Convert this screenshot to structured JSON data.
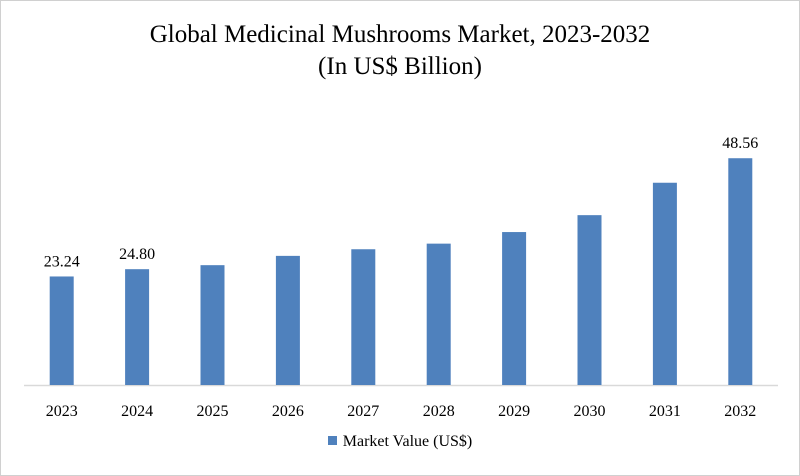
{
  "chart_data": {
    "type": "bar",
    "title": "Global Medicinal Mushrooms Market, 2023-2032",
    "subtitle": "(In US$ Billion)",
    "categories": [
      "2023",
      "2024",
      "2025",
      "2026",
      "2027",
      "2028",
      "2029",
      "2030",
      "2031",
      "2032"
    ],
    "series": [
      {
        "name": "Market Value (US$)",
        "values": [
          23.24,
          24.8,
          25.66,
          27.65,
          29.07,
          30.27,
          32.75,
          36.37,
          43.31,
          48.56
        ]
      }
    ],
    "data_labels": {
      "0": "23.24",
      "1": "24.80",
      "9": "48.56"
    },
    "xlabel": "",
    "ylabel": "",
    "ylim": [
      0,
      60
    ],
    "grid": false,
    "legend": "bottom",
    "color": "#4f81bd"
  }
}
